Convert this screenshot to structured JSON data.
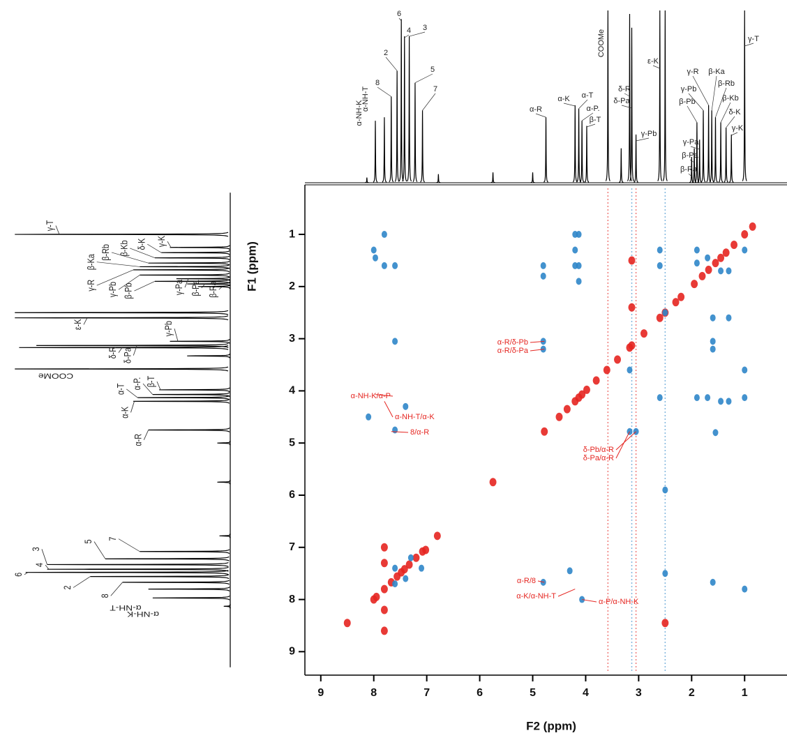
{
  "chart_data": {
    "type": "nmr2d",
    "xlabel": "F2 (ppm)",
    "ylabel": "F1 (ppm)",
    "xlim": [
      9.3,
      0.2
    ],
    "ylim": [
      9.45,
      0.05
    ],
    "xticks": [
      9,
      8,
      7,
      6,
      5,
      4,
      3,
      2,
      1
    ],
    "yticks": [
      1,
      2,
      3,
      4,
      5,
      6,
      7,
      8,
      9
    ],
    "series": [
      {
        "color": "#e52520",
        "x": [
          8.0,
          7.95,
          7.8,
          7.67,
          7.56,
          7.48,
          7.42,
          7.33,
          7.2,
          7.08,
          7.02,
          6.8,
          5.75,
          4.78,
          4.5,
          4.35,
          4.2,
          4.13,
          4.07,
          3.98,
          3.8,
          3.6,
          3.4,
          3.17,
          3.13,
          2.9,
          2.6,
          2.5,
          2.3,
          2.2,
          1.95,
          1.8,
          1.68,
          1.55,
          1.45,
          1.35,
          1.2,
          1.0,
          0.85,
          7.8,
          7.8,
          7.8,
          7.8,
          8.5,
          3.13,
          3.13,
          2.5
        ],
        "y": [
          8.0,
          7.95,
          7.8,
          7.67,
          7.56,
          7.48,
          7.42,
          7.33,
          7.2,
          7.08,
          7.05,
          6.78,
          5.75,
          4.78,
          4.5,
          4.35,
          4.2,
          4.13,
          4.07,
          3.98,
          3.8,
          3.6,
          3.4,
          3.17,
          3.13,
          2.9,
          2.6,
          2.5,
          2.3,
          2.2,
          1.95,
          1.8,
          1.68,
          1.55,
          1.45,
          1.35,
          1.2,
          1.0,
          0.85,
          7.0,
          7.3,
          8.2,
          8.6,
          8.45,
          1.5,
          2.4,
          8.45
        ]
      },
      {
        "color": "#2f86c9",
        "x": [
          7.8,
          8.0,
          7.97,
          7.6,
          7.8,
          7.6,
          8.1,
          7.4,
          7.6,
          4.8,
          4.8,
          4.8,
          4.8,
          4.8,
          4.2,
          4.2,
          4.2,
          4.13,
          4.13,
          4.13,
          4.07,
          3.05,
          3.17,
          3.17,
          2.6,
          2.6,
          2.6,
          2.5,
          1.0,
          1.0,
          1.0,
          1.3,
          1.45,
          1.7,
          1.9,
          1.6,
          1.6,
          1.9,
          1.9,
          1.7,
          1.45,
          1.3,
          1.55,
          1.6,
          1.3,
          1.0,
          1.6,
          2.5,
          2.5,
          7.4,
          7.3,
          7.6,
          7.1,
          7.6,
          4.3
        ],
        "y": [
          1.0,
          1.3,
          1.45,
          1.6,
          1.6,
          3.05,
          4.5,
          4.3,
          4.75,
          1.6,
          1.8,
          3.05,
          3.2,
          7.67,
          1.0,
          1.3,
          1.6,
          1.0,
          1.6,
          1.9,
          8.0,
          4.78,
          4.78,
          3.6,
          1.3,
          1.6,
          4.13,
          2.5,
          4.13,
          3.6,
          7.8,
          1.7,
          1.7,
          1.45,
          1.3,
          3.05,
          3.2,
          1.55,
          4.13,
          4.13,
          4.2,
          4.2,
          4.8,
          2.6,
          2.6,
          1.3,
          7.67,
          5.9,
          7.5,
          7.6,
          7.2,
          7.4,
          7.4,
          7.7,
          7.45
        ]
      }
    ],
    "t1_noise": [
      3.13,
      3.58,
      2.5,
      3.05
    ],
    "annotations": [
      {
        "text": "α-R/δ-Pb",
        "x": 4.78,
        "y": 3.05
      },
      {
        "text": "α-R/δ-Pa",
        "x": 4.78,
        "y": 3.2
      },
      {
        "text": "α-NH-K/α-P",
        "x": 7.97,
        "y": 4.07
      },
      {
        "text": "α-NH-T/α-K",
        "x": 7.8,
        "y": 4.2
      },
      {
        "text": "8/α-R",
        "x": 7.67,
        "y": 4.78
      },
      {
        "text": "δ-Pb/α-R",
        "x": 3.05,
        "y": 4.78
      },
      {
        "text": "δ-Pa/α-R",
        "x": 3.17,
        "y": 4.78
      },
      {
        "text": "α-R/8",
        "x": 4.78,
        "y": 7.67
      },
      {
        "text": "α-K/α-NH-T",
        "x": 4.2,
        "y": 7.8
      },
      {
        "text": "α-P/α-NH-K",
        "x": 4.07,
        "y": 8.0
      }
    ],
    "projection": {
      "color": "#000000",
      "peaks": [
        {
          "label": "6",
          "ppm": 7.48,
          "intensity": 0.95
        },
        {
          "label": "4",
          "ppm": 7.42,
          "intensity": 0.85
        },
        {
          "label": "3",
          "ppm": 7.33,
          "intensity": 0.85
        },
        {
          "label": "2",
          "ppm": 7.56,
          "intensity": 0.65
        },
        {
          "label": "5",
          "ppm": 7.22,
          "intensity": 0.58
        },
        {
          "label": "8",
          "ppm": 7.67,
          "intensity": 0.5
        },
        {
          "label": "7",
          "ppm": 7.08,
          "intensity": 0.42
        },
        {
          "label": "α-NH-T",
          "ppm": 7.8,
          "intensity": 0.38
        },
        {
          "label": "α-NH-K",
          "ppm": 7.97,
          "intensity": 0.36
        },
        {
          "label": "α-R",
          "ppm": 4.75,
          "intensity": 0.38
        },
        {
          "label": "α-K",
          "ppm": 4.2,
          "intensity": 0.45
        },
        {
          "label": "α-T",
          "ppm": 4.13,
          "intensity": 0.43
        },
        {
          "label": "α-P.",
          "ppm": 4.07,
          "intensity": 0.36
        },
        {
          "label": "β-T",
          "ppm": 3.98,
          "intensity": 0.33
        },
        {
          "label": "COOMe",
          "ppm": 3.58,
          "intensity": 1.0
        },
        {
          "label": "δ-R",
          "ppm": 3.17,
          "intensity": 0.98
        },
        {
          "label": "δ-Pa",
          "ppm": 3.13,
          "intensity": 0.9
        },
        {
          "label": "γ-Pb",
          "ppm": 3.05,
          "intensity": 0.28
        },
        {
          "label": "ε-K",
          "ppm": 2.6,
          "intensity": 1.0
        },
        {
          "label": "γ-R",
          "ppm": 1.68,
          "intensity": 0.45
        },
        {
          "label": "β-Ka",
          "ppm": 1.62,
          "intensity": 0.42
        },
        {
          "label": "γ-Pb",
          "ppm": 1.78,
          "intensity": 0.42
        },
        {
          "label": "β-Rb",
          "ppm": 1.55,
          "intensity": 0.38
        },
        {
          "label": "β-Pb",
          "ppm": 1.9,
          "intensity": 0.35
        },
        {
          "label": "β-Kb",
          "ppm": 1.45,
          "intensity": 0.35
        },
        {
          "label": "δ-K",
          "ppm": 1.35,
          "intensity": 0.32
        },
        {
          "label": "γ-K",
          "ppm": 1.25,
          "intensity": 0.28
        },
        {
          "label": "γ-Pa",
          "ppm": 1.85,
          "intensity": 0.25
        },
        {
          "label": "β-Pa",
          "ppm": 1.95,
          "intensity": 0.2
        },
        {
          "label": "β-Ra",
          "ppm": 2.0,
          "intensity": 0.15
        },
        {
          "label": "γ-T",
          "ppm": 1.0,
          "intensity": 1.0
        },
        {
          "label": null,
          "ppm": 2.5,
          "intensity": 1.0
        },
        {
          "label": null,
          "ppm": 5.0,
          "intensity": 0.06
        },
        {
          "label": null,
          "ppm": 6.78,
          "intensity": 0.05
        },
        {
          "label": null,
          "ppm": 5.75,
          "intensity": 0.06
        },
        {
          "label": null,
          "ppm": 8.13,
          "intensity": 0.03
        },
        {
          "label": null,
          "ppm": 3.33,
          "intensity": 0.2
        }
      ]
    }
  }
}
